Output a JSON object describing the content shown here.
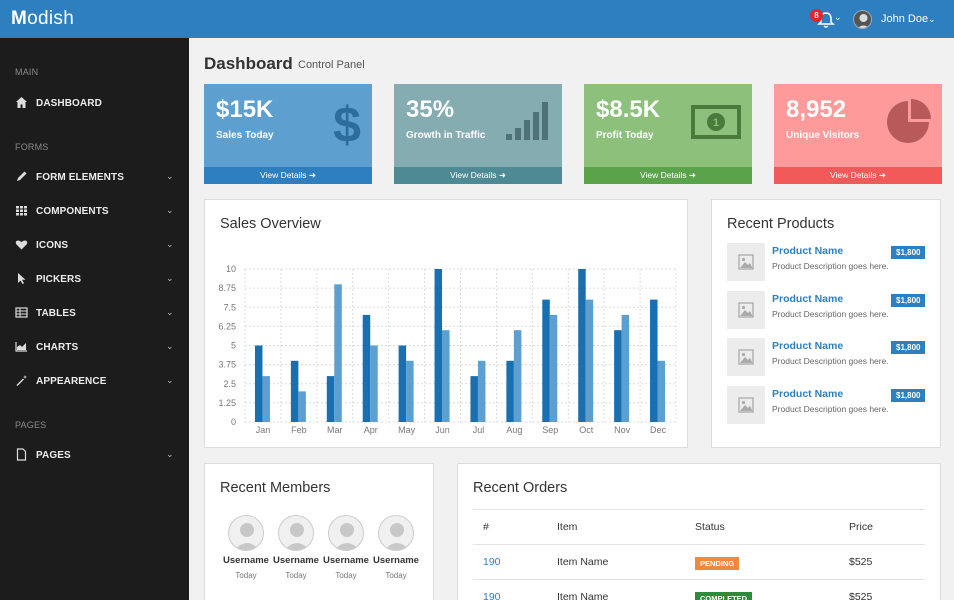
{
  "app": {
    "logo_initial": "M",
    "logo_rest": "odish"
  },
  "topbar": {
    "notification_count": "8",
    "user_name": "John Doe"
  },
  "sidebar": {
    "sections": [
      {
        "title": "MAIN",
        "items": [
          {
            "label": "DASHBOARD",
            "icon": "home-icon",
            "has_caret": false
          }
        ]
      },
      {
        "title": "FORMS",
        "items": [
          {
            "label": "FORM ELEMENTS",
            "icon": "pencil-icon",
            "has_caret": true
          },
          {
            "label": "COMPONENTS",
            "icon": "grid-icon",
            "has_caret": true
          },
          {
            "label": "ICONS",
            "icon": "heart-icon",
            "has_caret": true
          },
          {
            "label": "PICKERS",
            "icon": "cursor-icon",
            "has_caret": true
          },
          {
            "label": "TABLES",
            "icon": "table-icon",
            "has_caret": true
          },
          {
            "label": "CHARTS",
            "icon": "area-chart-icon",
            "has_caret": true
          },
          {
            "label": "APPEARENCE",
            "icon": "magic-wand-icon",
            "has_caret": true
          }
        ]
      },
      {
        "title": "PAGES",
        "items": [
          {
            "label": "PAGES",
            "icon": "file-icon",
            "has_caret": true
          }
        ]
      }
    ]
  },
  "header": {
    "title": "Dashboard",
    "subtitle": "Control Panel"
  },
  "stats": [
    {
      "value": "$15K",
      "label": "Sales Today",
      "link": "View Details",
      "icon": "dollar-icon",
      "color": "#5da0cf",
      "footer_color": "#2d7fbf"
    },
    {
      "value": "35%",
      "label": "Growth in Traffic",
      "link": "View Details",
      "icon": "bar-signal-icon",
      "color": "#85acb1",
      "footer_color": "#4e8a94"
    },
    {
      "value": "$8.5K",
      "label": "Profit Today",
      "link": "View Details",
      "icon": "banknote-icon",
      "color": "#8dc07b",
      "footer_color": "#5aa34a"
    },
    {
      "value": "8,952",
      "label": "Unique Visitors",
      "link": "View Details",
      "icon": "pie-chart-icon",
      "color": "#ff9a9a",
      "footer_color": "#f25a5a"
    }
  ],
  "sales_overview": {
    "title": "Sales Overview"
  },
  "chart_data": {
    "type": "bar",
    "categories": [
      "Jan",
      "Feb",
      "Mar",
      "Apr",
      "May",
      "Jun",
      "Jul",
      "Aug",
      "Sep",
      "Oct",
      "Nov",
      "Dec"
    ],
    "series": [
      {
        "values": [
          5,
          4,
          3,
          7,
          5,
          10,
          3,
          4,
          8,
          10,
          6,
          8
        ],
        "color": "#1a6fb0"
      },
      {
        "values": [
          3,
          2,
          9,
          5,
          4,
          6,
          4,
          6,
          7,
          8,
          7,
          4
        ],
        "color": "#5da0cf"
      }
    ],
    "yticks": [
      "0",
      "1.25",
      "2.5",
      "3.75",
      "5",
      "6.25",
      "7.5",
      "8.75",
      "10"
    ],
    "ylim": [
      0,
      10
    ],
    "grid": true
  },
  "recent_products": {
    "title": "Recent Products",
    "items": [
      {
        "name": "Product Name",
        "desc": "Product Description goes here.",
        "price": "$1,800"
      },
      {
        "name": "Product Name",
        "desc": "Product Description goes here.",
        "price": "$1,800"
      },
      {
        "name": "Product Name",
        "desc": "Product Description goes here.",
        "price": "$1,800"
      },
      {
        "name": "Product Name",
        "desc": "Product Description goes here.",
        "price": "$1,800"
      }
    ]
  },
  "recent_members": {
    "title": "Recent Members",
    "items": [
      {
        "name": "Username",
        "date": "Today"
      },
      {
        "name": "Username",
        "date": "Today"
      },
      {
        "name": "Username",
        "date": "Today"
      },
      {
        "name": "Username",
        "date": "Today"
      }
    ]
  },
  "recent_orders": {
    "title": "Recent Orders",
    "columns": [
      "#",
      "Item",
      "Status",
      "Price"
    ],
    "rows": [
      {
        "num": "190",
        "item": "Item Name",
        "status": "PENDING",
        "status_color": "#f0883e",
        "price": "$525"
      },
      {
        "num": "190",
        "item": "Item Name",
        "status": "COMPLETED",
        "status_color": "#2e8b3a",
        "price": "$525"
      }
    ]
  }
}
